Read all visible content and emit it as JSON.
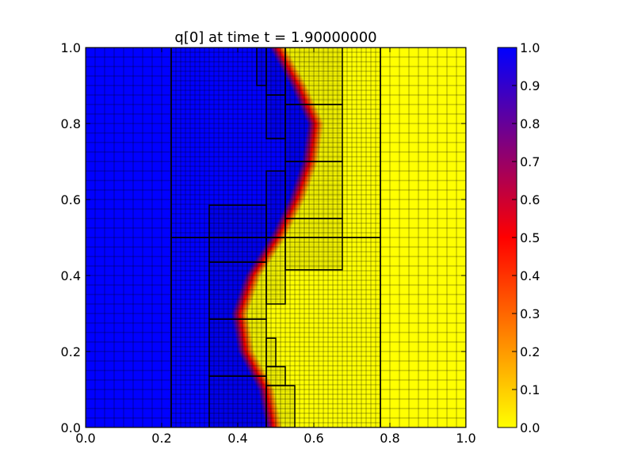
{
  "chart_data": {
    "type": "heatmap",
    "title": "q[0] at time t =      1.90000000",
    "xlabel": "",
    "ylabel": "",
    "xlim": [
      0.0,
      1.0
    ],
    "ylim": [
      0.0,
      1.0
    ],
    "x_ticks": [
      "0.0",
      "0.2",
      "0.4",
      "0.6",
      "0.8",
      "1.0"
    ],
    "y_ticks": [
      "0.0",
      "0.2",
      "0.4",
      "0.6",
      "0.8",
      "1.0"
    ],
    "colorbar": {
      "range": [
        0.0,
        1.0
      ],
      "ticks": [
        "0.0",
        "0.1",
        "0.2",
        "0.3",
        "0.4",
        "0.5",
        "0.6",
        "0.7",
        "0.8",
        "0.9",
        "1.0"
      ],
      "colormap": [
        {
          "value": 0.0,
          "color": "#ffff00"
        },
        {
          "value": 0.5,
          "color": "#ff0000"
        },
        {
          "value": 1.0,
          "color": "#0000ff"
        }
      ]
    },
    "field": {
      "high_value": 1.0,
      "low_value": 0.0,
      "interface_x_at_y": [
        [
          0.0,
          0.495
        ],
        [
          0.1,
          0.475
        ],
        [
          0.2,
          0.422
        ],
        [
          0.3,
          0.405
        ],
        [
          0.4,
          0.44
        ],
        [
          0.5,
          0.505
        ],
        [
          0.6,
          0.555
        ],
        [
          0.7,
          0.59
        ],
        [
          0.8,
          0.605
        ],
        [
          0.9,
          0.56
        ],
        [
          1.0,
          0.505
        ]
      ]
    },
    "amr_patches": [
      {
        "x": [
          0.0,
          0.225
        ],
        "y": [
          0.0,
          1.0
        ],
        "spacing": 0.025
      },
      {
        "x": [
          0.775,
          1.0
        ],
        "y": [
          0.0,
          1.0
        ],
        "spacing": 0.025
      },
      {
        "x": [
          0.225,
          0.775
        ],
        "y": [
          0.0,
          0.5
        ],
        "spacing": 0.0125
      },
      {
        "x": [
          0.225,
          0.775
        ],
        "y": [
          0.5,
          1.0
        ],
        "spacing": 0.0125
      },
      {
        "x": [
          0.325,
          0.475
        ],
        "y": [
          0.0,
          0.135
        ],
        "spacing": 0.004
      },
      {
        "x": [
          0.325,
          0.475
        ],
        "y": [
          0.135,
          0.285
        ],
        "spacing": 0.004
      },
      {
        "x": [
          0.325,
          0.475
        ],
        "y": [
          0.285,
          0.435
        ],
        "spacing": 0.004
      },
      {
        "x": [
          0.325,
          0.475
        ],
        "y": [
          0.435,
          0.585
        ],
        "spacing": 0.004
      },
      {
        "x": [
          0.475,
          0.55
        ],
        "y": [
          0.0,
          0.11
        ],
        "spacing": 0.004
      },
      {
        "x": [
          0.475,
          0.525
        ],
        "y": [
          0.11,
          0.16
        ],
        "spacing": 0.004
      },
      {
        "x": [
          0.475,
          0.5
        ],
        "y": [
          0.16,
          0.235
        ],
        "spacing": 0.004
      },
      {
        "x": [
          0.475,
          0.525
        ],
        "y": [
          0.325,
          0.5
        ],
        "spacing": 0.004
      },
      {
        "x": [
          0.475,
          0.525
        ],
        "y": [
          0.5,
          0.675
        ],
        "spacing": 0.004
      },
      {
        "x": [
          0.475,
          0.525
        ],
        "y": [
          0.76,
          0.875
        ],
        "spacing": 0.004
      },
      {
        "x": [
          0.475,
          0.525
        ],
        "y": [
          0.875,
          1.0
        ],
        "spacing": 0.004
      },
      {
        "x": [
          0.45,
          0.475
        ],
        "y": [
          0.9,
          1.0
        ],
        "spacing": 0.004
      },
      {
        "x": [
          0.525,
          0.675
        ],
        "y": [
          0.415,
          0.55
        ],
        "spacing": 0.004
      },
      {
        "x": [
          0.525,
          0.675
        ],
        "y": [
          0.55,
          0.7
        ],
        "spacing": 0.004
      },
      {
        "x": [
          0.525,
          0.675
        ],
        "y": [
          0.7,
          0.85
        ],
        "spacing": 0.004
      },
      {
        "x": [
          0.525,
          0.675
        ],
        "y": [
          0.85,
          1.0
        ],
        "spacing": 0.004
      }
    ]
  }
}
